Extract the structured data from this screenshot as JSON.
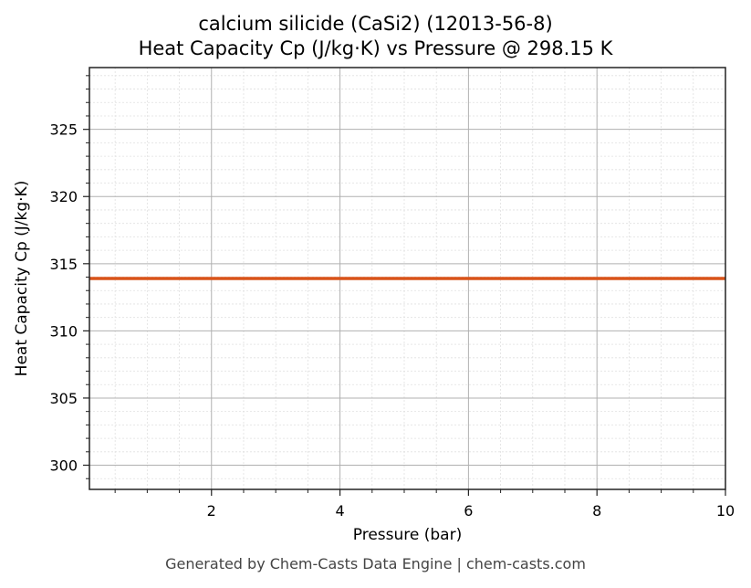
{
  "chart_data": {
    "type": "line",
    "title": "calcium silicide (CaSi2) (12013-56-8)",
    "subtitle": "Heat Capacity Cp (J/kg·K) vs Pressure @ 298.15 K",
    "xlabel": "Pressure (bar)",
    "ylabel": "Heat Capacity Cp (J/kg·K)",
    "xlim": [
      0.1,
      10
    ],
    "ylim": [
      298.2,
      329.6
    ],
    "x_ticks": [
      2,
      4,
      6,
      8,
      10
    ],
    "y_ticks": [
      300,
      305,
      310,
      315,
      320,
      325
    ],
    "grid": true,
    "legend": null,
    "series": [
      {
        "name": "Cp",
        "color": "#d95319",
        "x": [
          0.1,
          10
        ],
        "y": [
          313.9,
          313.9
        ]
      }
    ]
  },
  "footer": "Generated by Chem-Casts Data Engine | chem-casts.com"
}
